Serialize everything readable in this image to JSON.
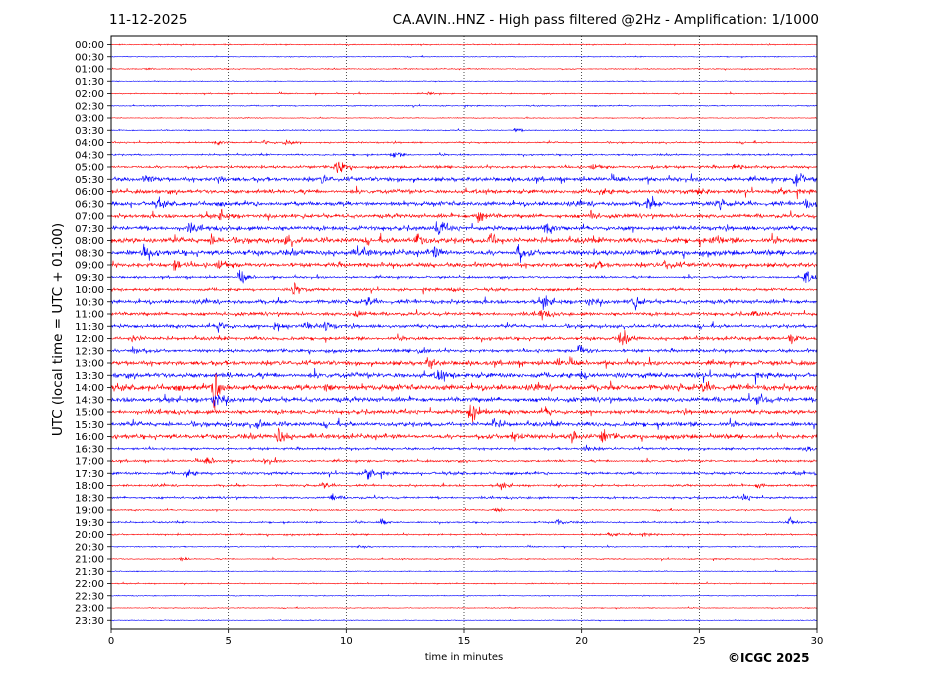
{
  "header": {
    "date": "11-12-2025",
    "station_title": "CA.AVIN..HNZ - High pass filtered @2Hz - Amplification: 1/1000"
  },
  "footer": {
    "copyright": "©ICGC 2025"
  },
  "chart_data": {
    "type": "line",
    "kind": "helicorder",
    "xlabel": "time in minutes",
    "ylabel": "UTC (local time = UTC + 01:00)",
    "xlim": [
      0,
      30
    ],
    "xticks": [
      0,
      5,
      10,
      15,
      20,
      25,
      30
    ],
    "vertical_grid": [
      5,
      10,
      15,
      20,
      25
    ],
    "grid_style": "dotted, vertical only",
    "series_colors": [
      "#ff0000",
      "#0000ff"
    ],
    "color_rule": "alternating per trace, starting red at 00:00",
    "rows": [
      {
        "label": "00:00",
        "noise": 0.4,
        "events": []
      },
      {
        "label": "00:30",
        "noise": 0.3,
        "events": []
      },
      {
        "label": "01:00",
        "noise": 0.4,
        "events": [
          {
            "t": 1.5,
            "a": 1.5
          }
        ]
      },
      {
        "label": "01:30",
        "noise": 0.3,
        "events": []
      },
      {
        "label": "02:00",
        "noise": 0.4,
        "events": [
          {
            "t": 13.5,
            "a": 1.2
          }
        ]
      },
      {
        "label": "02:30",
        "noise": 0.4,
        "events": []
      },
      {
        "label": "03:00",
        "noise": 0.3,
        "events": []
      },
      {
        "label": "03:30",
        "noise": 0.4,
        "events": [
          {
            "t": 17.2,
            "a": 2
          }
        ]
      },
      {
        "label": "04:00",
        "noise": 0.6,
        "events": [
          {
            "t": 4.5,
            "a": 1.5
          },
          {
            "t": 6.5,
            "a": 2.5
          },
          {
            "t": 7.4,
            "a": 3
          }
        ]
      },
      {
        "label": "04:30",
        "noise": 0.6,
        "events": [
          {
            "t": 12.0,
            "a": 4
          }
        ]
      },
      {
        "label": "05:00",
        "noise": 1.0,
        "events": [
          {
            "t": 9.6,
            "a": 8
          },
          {
            "t": 20.5,
            "a": 3
          },
          {
            "t": 23,
            "a": 2.5
          },
          {
            "t": 26.5,
            "a": 2.5
          }
        ]
      },
      {
        "label": "05:30",
        "noise": 1.6,
        "events": [
          {
            "t": 1.5,
            "a": 3.5
          },
          {
            "t": 4.5,
            "a": 3
          },
          {
            "t": 9,
            "a": 3
          },
          {
            "t": 29.1,
            "a": 9
          }
        ]
      },
      {
        "label": "06:00",
        "noise": 1.5,
        "events": [
          {
            "t": 20.8,
            "a": 3
          },
          {
            "t": 25,
            "a": 3
          },
          {
            "t": 28.5,
            "a": 3
          }
        ]
      },
      {
        "label": "06:30",
        "noise": 1.7,
        "events": [
          {
            "t": 2,
            "a": 3
          },
          {
            "t": 22.8,
            "a": 6
          },
          {
            "t": 25.8,
            "a": 4
          },
          {
            "t": 29.5,
            "a": 4
          }
        ]
      },
      {
        "label": "07:00",
        "noise": 1.5,
        "events": [
          {
            "t": 4.7,
            "a": 5
          },
          {
            "t": 15.6,
            "a": 8
          },
          {
            "t": 20.4,
            "a": 4
          }
        ]
      },
      {
        "label": "07:30",
        "noise": 1.7,
        "events": [
          {
            "t": 3.3,
            "a": 4
          },
          {
            "t": 13.9,
            "a": 8
          },
          {
            "t": 18.5,
            "a": 4
          }
        ]
      },
      {
        "label": "08:00",
        "noise": 2.0,
        "events": [
          {
            "t": 4.3,
            "a": 4
          },
          {
            "t": 7.5,
            "a": 5
          },
          {
            "t": 13,
            "a": 7
          },
          {
            "t": 16.1,
            "a": 8
          },
          {
            "t": 25.6,
            "a": 5
          }
        ]
      },
      {
        "label": "08:30",
        "noise": 2.0,
        "events": [
          {
            "t": 1.4,
            "a": 7
          },
          {
            "t": 10.5,
            "a": 5
          },
          {
            "t": 13.7,
            "a": 5
          },
          {
            "t": 17.3,
            "a": 6
          }
        ]
      },
      {
        "label": "09:00",
        "noise": 1.7,
        "events": [
          {
            "t": 2.7,
            "a": 5
          },
          {
            "t": 4.6,
            "a": 5
          },
          {
            "t": 20.6,
            "a": 3
          },
          {
            "t": 23.6,
            "a": 5
          }
        ]
      },
      {
        "label": "09:30",
        "noise": 0.8,
        "events": [
          {
            "t": 5.5,
            "a": 6
          },
          {
            "t": 29.5,
            "a": 8
          }
        ]
      },
      {
        "label": "10:00",
        "noise": 1.0,
        "events": [
          {
            "t": 7.8,
            "a": 6
          },
          {
            "t": 14.5,
            "a": 2.5
          }
        ]
      },
      {
        "label": "10:30",
        "noise": 1.5,
        "events": [
          {
            "t": 10.9,
            "a": 4
          },
          {
            "t": 18.4,
            "a": 5
          },
          {
            "t": 20.3,
            "a": 4
          },
          {
            "t": 22.2,
            "a": 7
          }
        ]
      },
      {
        "label": "11:00",
        "noise": 1.3,
        "events": [
          {
            "t": 10.4,
            "a": 4
          },
          {
            "t": 18.3,
            "a": 5
          },
          {
            "t": 27.3,
            "a": 3
          }
        ]
      },
      {
        "label": "11:30",
        "noise": 1.3,
        "events": [
          {
            "t": 4.6,
            "a": 5
          },
          {
            "t": 7.0,
            "a": 5
          },
          {
            "t": 8.3,
            "a": 4
          },
          {
            "t": 9.1,
            "a": 5
          }
        ]
      },
      {
        "label": "12:00",
        "noise": 1.3,
        "events": [
          {
            "t": 0.9,
            "a": 4
          },
          {
            "t": 21.7,
            "a": 7
          },
          {
            "t": 28.9,
            "a": 9
          }
        ]
      },
      {
        "label": "12:30",
        "noise": 1.2,
        "events": [
          {
            "t": 0.9,
            "a": 5
          },
          {
            "t": 13.1,
            "a": 4
          },
          {
            "t": 19.9,
            "a": 6
          }
        ]
      },
      {
        "label": "13:00",
        "noise": 1.7,
        "events": [
          {
            "t": 13.5,
            "a": 5
          },
          {
            "t": 19,
            "a": 3
          }
        ]
      },
      {
        "label": "13:30",
        "noise": 1.9,
        "events": [
          {
            "t": 13.9,
            "a": 6
          },
          {
            "t": 20,
            "a": 3
          }
        ]
      },
      {
        "label": "14:00",
        "noise": 2.2,
        "events": [
          {
            "t": 4.4,
            "a": 17
          },
          {
            "t": 9.2,
            "a": 4
          },
          {
            "t": 25.2,
            "a": 5
          }
        ]
      },
      {
        "label": "14:30",
        "noise": 1.8,
        "events": [
          {
            "t": 4.4,
            "a": 8
          },
          {
            "t": 27.5,
            "a": 6
          }
        ]
      },
      {
        "label": "15:00",
        "noise": 1.6,
        "events": [
          {
            "t": 15.3,
            "a": 12
          },
          {
            "t": 18.5,
            "a": 3
          }
        ]
      },
      {
        "label": "15:30",
        "noise": 1.7,
        "events": [
          {
            "t": 6.2,
            "a": 5
          },
          {
            "t": 16.3,
            "a": 4
          }
        ]
      },
      {
        "label": "16:00",
        "noise": 1.7,
        "events": [
          {
            "t": 7.1,
            "a": 8
          },
          {
            "t": 17.1,
            "a": 6
          },
          {
            "t": 19.6,
            "a": 5
          },
          {
            "t": 20.9,
            "a": 6
          }
        ]
      },
      {
        "label": "16:30",
        "noise": 0.9,
        "events": [
          {
            "t": 20.2,
            "a": 4
          },
          {
            "t": 29.6,
            "a": 3
          }
        ]
      },
      {
        "label": "17:00",
        "noise": 0.8,
        "events": [
          {
            "t": 4.1,
            "a": 4
          },
          {
            "t": 6.6,
            "a": 4
          }
        ]
      },
      {
        "label": "17:30",
        "noise": 1.0,
        "events": [
          {
            "t": 3.2,
            "a": 4
          },
          {
            "t": 10.9,
            "a": 9
          },
          {
            "t": 29.1,
            "a": 3
          }
        ]
      },
      {
        "label": "18:00",
        "noise": 0.8,
        "events": [
          {
            "t": 9.0,
            "a": 3
          },
          {
            "t": 16.6,
            "a": 2.5
          },
          {
            "t": 27.5,
            "a": 3
          }
        ]
      },
      {
        "label": "18:30",
        "noise": 0.8,
        "events": [
          {
            "t": 9.4,
            "a": 3.5
          },
          {
            "t": 26.9,
            "a": 3.5
          }
        ]
      },
      {
        "label": "19:00",
        "noise": 0.5,
        "events": [
          {
            "t": 16.3,
            "a": 3
          }
        ]
      },
      {
        "label": "19:30",
        "noise": 0.6,
        "events": [
          {
            "t": 11.5,
            "a": 3
          },
          {
            "t": 19.0,
            "a": 3
          },
          {
            "t": 28.8,
            "a": 7
          }
        ]
      },
      {
        "label": "20:00",
        "noise": 0.6,
        "events": [
          {
            "t": 21.2,
            "a": 3
          },
          {
            "t": 22.6,
            "a": 2.5
          }
        ]
      },
      {
        "label": "20:30",
        "noise": 0.4,
        "events": [
          {
            "t": 10.6,
            "a": 1.5
          }
        ]
      },
      {
        "label": "21:00",
        "noise": 0.4,
        "events": [
          {
            "t": 3,
            "a": 1.2
          }
        ]
      },
      {
        "label": "21:30",
        "noise": 0.3,
        "events": []
      },
      {
        "label": "22:00",
        "noise": 0.4,
        "events": []
      },
      {
        "label": "22:30",
        "noise": 0.3,
        "events": []
      },
      {
        "label": "23:00",
        "noise": 0.3,
        "events": []
      },
      {
        "label": "23:30",
        "noise": 0.3,
        "events": []
      }
    ]
  }
}
